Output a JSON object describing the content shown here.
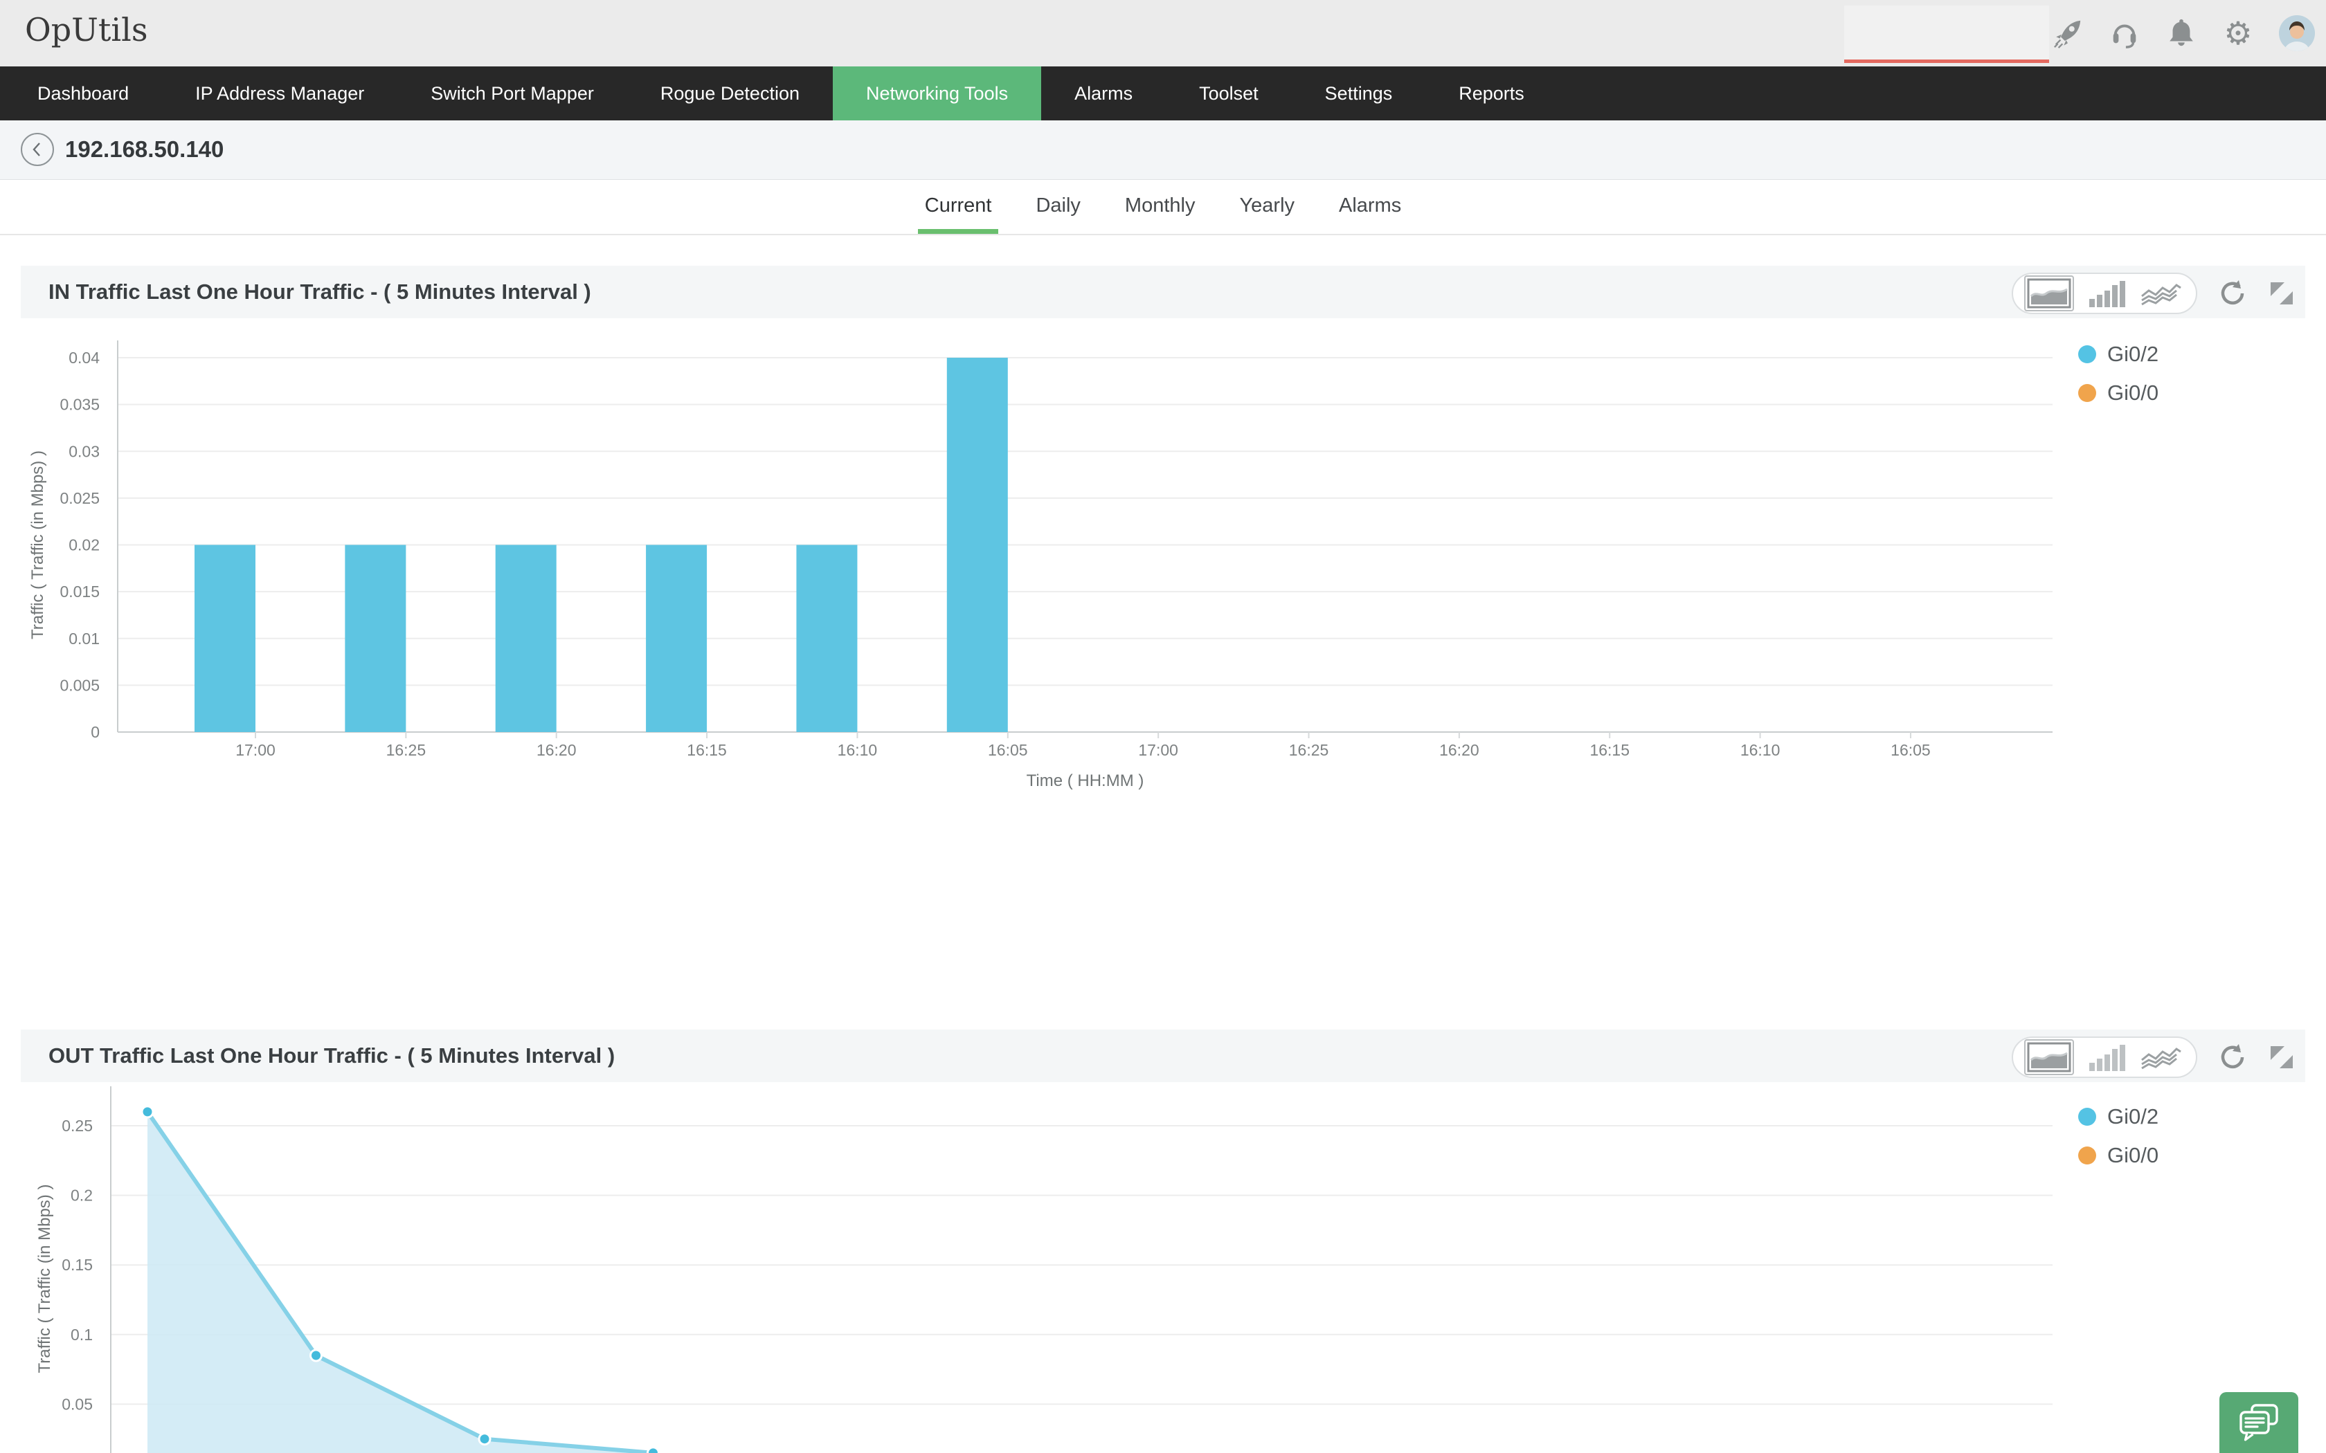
{
  "app": {
    "logo_text": "OpUtils"
  },
  "topbar": {
    "search_value": "",
    "icons": [
      "rocket-icon",
      "headset-icon",
      "bell-icon",
      "gear-icon",
      "user-avatar"
    ],
    "search_underline_color": "#e4695f"
  },
  "nav": {
    "items": [
      {
        "label": "Dashboard",
        "active": false
      },
      {
        "label": "IP Address Manager",
        "active": false
      },
      {
        "label": "Switch Port Mapper",
        "active": false
      },
      {
        "label": "Rogue Detection",
        "active": false
      },
      {
        "label": "Networking Tools",
        "active": true
      },
      {
        "label": "Alarms",
        "active": false
      },
      {
        "label": "Toolset",
        "active": false
      },
      {
        "label": "Settings",
        "active": false
      },
      {
        "label": "Reports",
        "active": false
      }
    ],
    "active_color": "#5cb87a"
  },
  "breadcrumb": {
    "back_icon": "chevron-left-icon",
    "title": "192.168.50.140"
  },
  "period_tabs": {
    "items": [
      "Current",
      "Daily",
      "Monthly",
      "Yearly",
      "Alarms"
    ],
    "active": "Current",
    "underline_color": "#6abf6e"
  },
  "panels": [
    {
      "title": "IN Traffic Last One Hour Traffic - ( 5 Minutes Interval )",
      "toolbar": {
        "chart_types": [
          "area-chart-icon",
          "bar-chart-icon",
          "line-chart-icon"
        ],
        "selected": "area-chart-icon",
        "actions": [
          "refresh-icon",
          "expand-icon"
        ]
      },
      "legend": [
        {
          "label": "Gi0/2",
          "color": "#54c3e4"
        },
        {
          "label": "Gi0/0",
          "color": "#f0a44c"
        }
      ]
    },
    {
      "title": "OUT Traffic Last One Hour Traffic - ( 5 Minutes Interval )",
      "toolbar": {
        "chart_types": [
          "area-chart-icon",
          "bar-chart-icon",
          "line-chart-icon"
        ],
        "selected": "area-chart-icon",
        "actions": [
          "refresh-icon",
          "expand-icon"
        ]
      },
      "legend": [
        {
          "label": "Gi0/2",
          "color": "#54c3e4"
        },
        {
          "label": "Gi0/0",
          "color": "#f0a44c"
        }
      ]
    }
  ],
  "chart_data": [
    {
      "type": "bar",
      "title": "IN Traffic Last One Hour Traffic - ( 5 Minutes Interval )",
      "categories": [
        "17:00",
        "16:25",
        "16:20",
        "16:15",
        "16:10",
        "16:05",
        "17:00",
        "16:25",
        "16:20",
        "16:15",
        "16:10",
        "16:05"
      ],
      "series": [
        {
          "name": "Gi0/2",
          "color": "#5ec5e2",
          "values": [
            0.02,
            0.02,
            0.02,
            0.02,
            0.02,
            0.04,
            null,
            null,
            null,
            null,
            null,
            null
          ]
        },
        {
          "name": "Gi0/0",
          "color": "#f0a44c",
          "values": [
            null,
            null,
            null,
            null,
            null,
            null,
            null,
            null,
            null,
            null,
            null,
            null
          ]
        }
      ],
      "xlabel": "Time ( HH:MM )",
      "ylabel": "Traffic ( Traffic (in Mbps) )",
      "ylim": [
        0,
        0.04
      ],
      "yticks": [
        0,
        0.005,
        0.01,
        0.015,
        0.02,
        0.025,
        0.03,
        0.035,
        0.04
      ],
      "grid": true,
      "legend_position": "right"
    },
    {
      "type": "area",
      "title": "OUT Traffic Last One Hour Traffic - ( 5 Minutes Interval )",
      "series": [
        {
          "name": "Gi0/2",
          "color": "#85d1e7",
          "fill": "#cde9f5",
          "marker_color": "#44bbdc",
          "values": [
            0.26,
            0.085,
            0.025,
            0.015
          ]
        },
        {
          "name": "Gi0/0",
          "color": "#f0a44c",
          "values": []
        }
      ],
      "ylabel": "Traffic ( Traffic (in Mbps) )",
      "yticks": [
        0.05,
        0.1,
        0.15,
        0.2,
        0.25
      ],
      "ylim": [
        0,
        0.27
      ],
      "grid": true,
      "legend_position": "right",
      "x_axis_visible": false,
      "cropped_bottom": true
    }
  ],
  "floating": {
    "chat_button_icon": "chat-icon"
  }
}
